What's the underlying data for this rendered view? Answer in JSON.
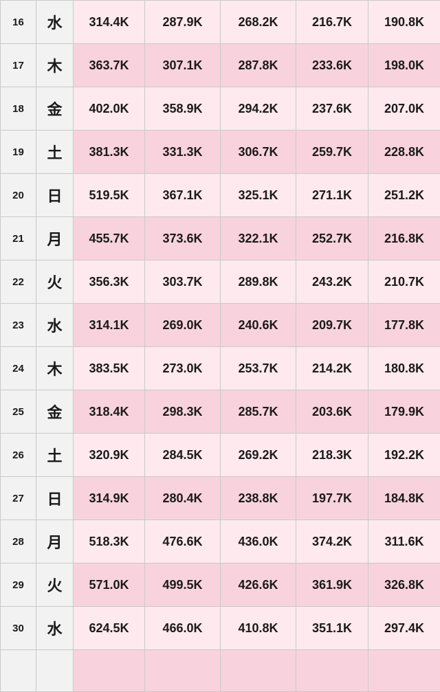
{
  "rows": [
    {
      "day": "16",
      "weekday": "水",
      "values": [
        "314.4K",
        "287.9K",
        "268.2K",
        "216.7K",
        "190.8K"
      ]
    },
    {
      "day": "17",
      "weekday": "木",
      "values": [
        "363.7K",
        "307.1K",
        "287.8K",
        "233.6K",
        "198.0K"
      ]
    },
    {
      "day": "18",
      "weekday": "金",
      "values": [
        "402.0K",
        "358.9K",
        "294.2K",
        "237.6K",
        "207.0K"
      ]
    },
    {
      "day": "19",
      "weekday": "土",
      "values": [
        "381.3K",
        "331.3K",
        "306.7K",
        "259.7K",
        "228.8K"
      ]
    },
    {
      "day": "20",
      "weekday": "日",
      "values": [
        "519.5K",
        "367.1K",
        "325.1K",
        "271.1K",
        "251.2K"
      ]
    },
    {
      "day": "21",
      "weekday": "月",
      "values": [
        "455.7K",
        "373.6K",
        "322.1K",
        "252.7K",
        "216.8K"
      ]
    },
    {
      "day": "22",
      "weekday": "火",
      "values": [
        "356.3K",
        "303.7K",
        "289.8K",
        "243.2K",
        "210.7K"
      ]
    },
    {
      "day": "23",
      "weekday": "水",
      "values": [
        "314.1K",
        "269.0K",
        "240.6K",
        "209.7K",
        "177.8K"
      ]
    },
    {
      "day": "24",
      "weekday": "木",
      "values": [
        "383.5K",
        "273.0K",
        "253.7K",
        "214.2K",
        "180.8K"
      ]
    },
    {
      "day": "25",
      "weekday": "金",
      "values": [
        "318.4K",
        "298.3K",
        "285.7K",
        "203.6K",
        "179.9K"
      ]
    },
    {
      "day": "26",
      "weekday": "土",
      "values": [
        "320.9K",
        "284.5K",
        "269.2K",
        "218.3K",
        "192.2K"
      ]
    },
    {
      "day": "27",
      "weekday": "日",
      "values": [
        "314.9K",
        "280.4K",
        "238.8K",
        "197.7K",
        "184.8K"
      ]
    },
    {
      "day": "28",
      "weekday": "月",
      "values": [
        "518.3K",
        "476.6K",
        "436.0K",
        "374.2K",
        "311.6K"
      ]
    },
    {
      "day": "29",
      "weekday": "火",
      "values": [
        "571.0K",
        "499.5K",
        "426.6K",
        "361.9K",
        "326.8K"
      ]
    },
    {
      "day": "30",
      "weekday": "水",
      "values": [
        "624.5K",
        "466.0K",
        "410.8K",
        "351.1K",
        "297.4K"
      ]
    }
  ]
}
